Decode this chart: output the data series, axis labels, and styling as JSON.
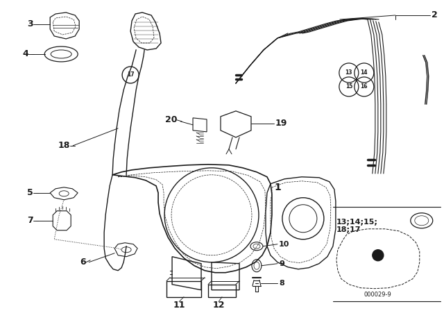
{
  "bg_color": "#ffffff",
  "line_color": "#1a1a1a",
  "fig_width": 6.4,
  "fig_height": 4.48,
  "dpi": 100,
  "bottom_right_label": "13;14;15;\n18;17",
  "bottom_code": "000029-9"
}
